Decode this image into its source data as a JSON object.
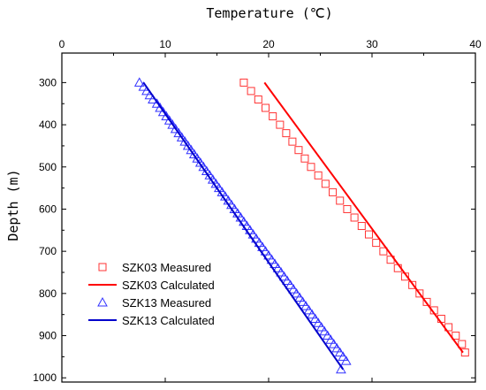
{
  "chart_data": {
    "type": "scatter",
    "title": "",
    "xlabel": "Temperature (℃)",
    "ylabel": "Depth (m)",
    "xlim": [
      0,
      40
    ],
    "ylim": [
      230,
      1010
    ],
    "x_axis_position": "top",
    "y_axis_inverted": true,
    "x_ticks": [
      "0",
      "10",
      "20",
      "30",
      "40"
    ],
    "y_ticks": [
      "300",
      "400",
      "500",
      "600",
      "700",
      "800",
      "900",
      "1000"
    ],
    "grid": false,
    "legend_position": "bottom-left",
    "series": [
      {
        "name": "SZK03 Measured",
        "kind": "marker",
        "marker": "square",
        "color": "#ff3333",
        "points": [
          [
            17.6,
            300
          ],
          [
            18.3,
            320
          ],
          [
            19.0,
            340
          ],
          [
            19.7,
            360
          ],
          [
            20.4,
            380
          ],
          [
            21.1,
            400
          ],
          [
            21.7,
            420
          ],
          [
            22.3,
            440
          ],
          [
            22.9,
            460
          ],
          [
            23.5,
            480
          ],
          [
            24.1,
            500
          ],
          [
            24.8,
            520
          ],
          [
            25.5,
            540
          ],
          [
            26.2,
            560
          ],
          [
            26.9,
            580
          ],
          [
            27.6,
            600
          ],
          [
            28.3,
            620
          ],
          [
            29.0,
            640
          ],
          [
            29.7,
            660
          ],
          [
            30.4,
            680
          ],
          [
            31.1,
            700
          ],
          [
            31.8,
            720
          ],
          [
            32.5,
            740
          ],
          [
            33.2,
            760
          ],
          [
            33.9,
            780
          ],
          [
            34.6,
            800
          ],
          [
            35.3,
            820
          ],
          [
            36.0,
            840
          ],
          [
            36.7,
            860
          ],
          [
            37.4,
            880
          ],
          [
            38.1,
            900
          ],
          [
            38.7,
            920
          ],
          [
            39.0,
            940
          ]
        ]
      },
      {
        "name": "SZK03 Calculated",
        "kind": "line",
        "color": "#ff0000",
        "points": [
          [
            19.6,
            300
          ],
          [
            38.8,
            940
          ]
        ]
      },
      {
        "name": "SZK13 Measured",
        "kind": "marker",
        "marker": "triangle",
        "color": "#3333ff",
        "points": [
          [
            7.5,
            300
          ],
          [
            7.9,
            310
          ],
          [
            8.2,
            320
          ],
          [
            8.5,
            330
          ],
          [
            8.8,
            340
          ],
          [
            9.2,
            350
          ],
          [
            9.5,
            360
          ],
          [
            9.8,
            370
          ],
          [
            10.1,
            380
          ],
          [
            10.4,
            390
          ],
          [
            10.7,
            400
          ],
          [
            11.0,
            410
          ],
          [
            11.3,
            420
          ],
          [
            11.6,
            430
          ],
          [
            11.9,
            440
          ],
          [
            12.2,
            450
          ],
          [
            12.5,
            460
          ],
          [
            12.8,
            470
          ],
          [
            13.1,
            480
          ],
          [
            13.4,
            490
          ],
          [
            13.7,
            500
          ],
          [
            14.0,
            510
          ],
          [
            14.3,
            520
          ],
          [
            14.6,
            530
          ],
          [
            14.9,
            540
          ],
          [
            15.2,
            550
          ],
          [
            15.5,
            560
          ],
          [
            15.8,
            570
          ],
          [
            16.1,
            580
          ],
          [
            16.4,
            590
          ],
          [
            16.7,
            600
          ],
          [
            17.0,
            610
          ],
          [
            17.3,
            620
          ],
          [
            17.6,
            630
          ],
          [
            17.9,
            640
          ],
          [
            18.2,
            650
          ],
          [
            18.5,
            660
          ],
          [
            18.8,
            670
          ],
          [
            19.1,
            680
          ],
          [
            19.4,
            690
          ],
          [
            19.7,
            700
          ],
          [
            20.0,
            710
          ],
          [
            20.3,
            720
          ],
          [
            20.6,
            730
          ],
          [
            20.9,
            740
          ],
          [
            21.2,
            750
          ],
          [
            21.5,
            760
          ],
          [
            21.8,
            770
          ],
          [
            22.1,
            780
          ],
          [
            22.4,
            790
          ],
          [
            22.7,
            800
          ],
          [
            23.0,
            810
          ],
          [
            23.3,
            820
          ],
          [
            23.6,
            830
          ],
          [
            23.9,
            840
          ],
          [
            24.2,
            850
          ],
          [
            24.5,
            860
          ],
          [
            24.8,
            870
          ],
          [
            25.1,
            880
          ],
          [
            25.4,
            890
          ],
          [
            25.7,
            900
          ],
          [
            26.0,
            910
          ],
          [
            26.3,
            920
          ],
          [
            26.6,
            930
          ],
          [
            26.9,
            940
          ],
          [
            27.2,
            950
          ],
          [
            27.5,
            960
          ],
          [
            27.0,
            980
          ]
        ]
      },
      {
        "name": "SZK13 Calculated",
        "kind": "line",
        "color": "#0000cc",
        "points": [
          [
            7.9,
            300
          ],
          [
            27.2,
            980
          ]
        ]
      }
    ]
  }
}
